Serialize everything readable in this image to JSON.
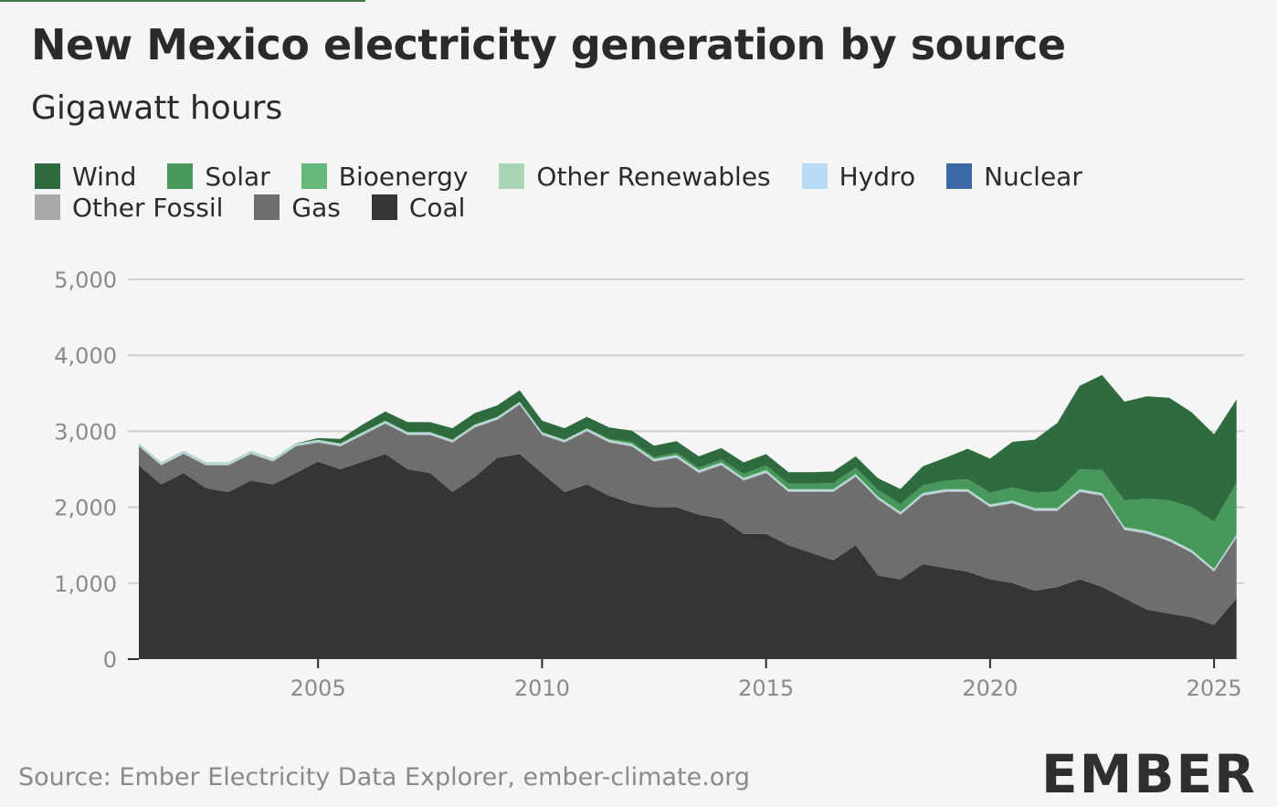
{
  "title": "New Mexico electricity generation by source",
  "subtitle": "Gigawatt hours",
  "source": "Source: Ember Electricity Data Explorer, ember-climate.org",
  "logo": "EMBER",
  "legend": [
    {
      "label": "Wind",
      "color": "#2e6b3f"
    },
    {
      "label": "Solar",
      "color": "#48975c"
    },
    {
      "label": "Bioenergy",
      "color": "#66b87a"
    },
    {
      "label": "Other Renewables",
      "color": "#a8d5b4"
    },
    {
      "label": "Hydro",
      "color": "#b9daf3"
    },
    {
      "label": "Nuclear",
      "color": "#3b6aa6"
    },
    {
      "label": "Other Fossil",
      "color": "#a9a9a9"
    },
    {
      "label": "Gas",
      "color": "#6e6e6e"
    },
    {
      "label": "Coal",
      "color": "#353535"
    }
  ],
  "chart_data": {
    "type": "area",
    "stacked": true,
    "title": "New Mexico electricity generation by source",
    "ylabel": "Gigawatt hours",
    "xlabel": "",
    "ylim": [
      0,
      5000
    ],
    "yticks": [
      0,
      1000,
      2000,
      3000,
      4000,
      5000
    ],
    "ytick_labels": [
      "0",
      "1,000",
      "2,000",
      "3,000",
      "4,000",
      "5,000"
    ],
    "xlim": [
      2001.0,
      2025.67
    ],
    "xticks": [
      2005,
      2010,
      2015,
      2020,
      2025
    ],
    "xtick_labels": [
      "2005",
      "2010",
      "2015",
      "2020",
      "2025"
    ],
    "x": [
      2001.0,
      2001.5,
      2002.0,
      2002.5,
      2003.0,
      2003.5,
      2004.0,
      2004.5,
      2005.0,
      2005.5,
      2006.0,
      2006.5,
      2007.0,
      2007.5,
      2008.0,
      2008.5,
      2009.0,
      2009.5,
      2010.0,
      2010.5,
      2011.0,
      2011.5,
      2012.0,
      2012.5,
      2013.0,
      2013.5,
      2014.0,
      2014.5,
      2015.0,
      2015.5,
      2016.0,
      2016.5,
      2017.0,
      2017.5,
      2018.0,
      2018.5,
      2019.0,
      2019.5,
      2020.0,
      2020.5,
      2021.0,
      2021.5,
      2022.0,
      2022.5,
      2023.0,
      2023.5,
      2024.0,
      2024.5,
      2025.0,
      2025.5
    ],
    "series": [
      {
        "name": "Coal",
        "color": "#353535",
        "values": [
          2550,
          2300,
          2450,
          2250,
          2200,
          2350,
          2300,
          2450,
          2600,
          2500,
          2600,
          2700,
          2500,
          2450,
          2200,
          2400,
          2650,
          2700,
          2450,
          2200,
          2300,
          2150,
          2050,
          2000,
          2000,
          1900,
          1850,
          1650,
          1650,
          1500,
          1400,
          1300,
          1500,
          1100,
          1050,
          1250,
          1200,
          1150,
          1050,
          1000,
          900,
          950,
          1050,
          950,
          800,
          650,
          600,
          550,
          450,
          800
        ]
      },
      {
        "name": "Gas",
        "color": "#6e6e6e",
        "values": [
          250,
          250,
          250,
          300,
          350,
          350,
          300,
          350,
          250,
          300,
          350,
          400,
          450,
          500,
          650,
          650,
          500,
          650,
          500,
          650,
          700,
          700,
          750,
          600,
          650,
          550,
          700,
          700,
          800,
          700,
          800,
          900,
          900,
          1000,
          850,
          900,
          1000,
          1050,
          950,
          1050,
          1050,
          1000,
          1150,
          1200,
          900,
          1000,
          950,
          850,
          700,
          800
        ]
      },
      {
        "name": "Other Fossil",
        "color": "#a9a9a9",
        "values": [
          10,
          10,
          10,
          10,
          10,
          10,
          10,
          10,
          10,
          10,
          10,
          10,
          10,
          10,
          10,
          10,
          10,
          10,
          10,
          10,
          10,
          10,
          10,
          10,
          10,
          10,
          10,
          10,
          10,
          10,
          10,
          10,
          10,
          10,
          10,
          10,
          10,
          10,
          10,
          10,
          10,
          10,
          10,
          10,
          10,
          10,
          10,
          10,
          10,
          10
        ]
      },
      {
        "name": "Nuclear",
        "color": "#3b6aa6",
        "values": [
          0,
          0,
          0,
          0,
          0,
          0,
          0,
          0,
          0,
          0,
          0,
          0,
          0,
          0,
          0,
          0,
          0,
          0,
          0,
          0,
          0,
          0,
          0,
          0,
          0,
          0,
          0,
          0,
          0,
          0,
          0,
          0,
          0,
          0,
          0,
          0,
          0,
          0,
          0,
          0,
          0,
          0,
          0,
          0,
          0,
          0,
          0,
          0,
          0,
          0
        ]
      },
      {
        "name": "Hydro",
        "color": "#b9daf3",
        "values": [
          15,
          15,
          15,
          15,
          15,
          15,
          15,
          15,
          15,
          15,
          15,
          15,
          15,
          15,
          15,
          15,
          15,
          15,
          15,
          15,
          15,
          15,
          15,
          15,
          15,
          15,
          15,
          15,
          15,
          15,
          15,
          15,
          15,
          15,
          15,
          15,
          15,
          15,
          15,
          15,
          15,
          15,
          15,
          15,
          15,
          15,
          15,
          15,
          15,
          15
        ]
      },
      {
        "name": "Other Renewables",
        "color": "#a8d5b4",
        "values": [
          10,
          10,
          10,
          10,
          10,
          10,
          10,
          10,
          10,
          10,
          10,
          10,
          10,
          10,
          10,
          10,
          10,
          10,
          10,
          10,
          10,
          10,
          10,
          10,
          10,
          10,
          10,
          10,
          10,
          10,
          10,
          10,
          10,
          10,
          10,
          10,
          10,
          10,
          10,
          10,
          10,
          10,
          10,
          10,
          10,
          10,
          10,
          10,
          10,
          10
        ]
      },
      {
        "name": "Bioenergy",
        "color": "#66b87a",
        "values": [
          5,
          5,
          5,
          5,
          5,
          5,
          5,
          5,
          5,
          5,
          5,
          5,
          5,
          5,
          5,
          5,
          5,
          5,
          5,
          5,
          5,
          5,
          5,
          5,
          5,
          5,
          5,
          5,
          5,
          5,
          5,
          5,
          5,
          5,
          5,
          5,
          5,
          5,
          5,
          5,
          5,
          5,
          5,
          5,
          5,
          5,
          5,
          5,
          5,
          5
        ]
      },
      {
        "name": "Solar",
        "color": "#48975c",
        "values": [
          0,
          0,
          0,
          0,
          0,
          0,
          0,
          0,
          0,
          0,
          0,
          0,
          0,
          0,
          0,
          0,
          0,
          0,
          0,
          0,
          0,
          10,
          20,
          20,
          30,
          30,
          40,
          50,
          60,
          70,
          70,
          80,
          80,
          90,
          100,
          100,
          110,
          130,
          150,
          170,
          200,
          220,
          260,
          300,
          350,
          420,
          500,
          560,
          620,
          680
        ]
      },
      {
        "name": "Wind",
        "color": "#2e6b3f",
        "values": [
          0,
          0,
          0,
          0,
          0,
          0,
          0,
          0,
          20,
          60,
          100,
          120,
          130,
          130,
          150,
          150,
          150,
          150,
          150,
          150,
          150,
          150,
          150,
          150,
          150,
          150,
          150,
          150,
          150,
          150,
          150,
          150,
          150,
          150,
          200,
          250,
          300,
          400,
          450,
          600,
          700,
          900,
          1100,
          1250,
          1300,
          1350,
          1350,
          1250,
          1150,
          1100
        ]
      }
    ]
  }
}
